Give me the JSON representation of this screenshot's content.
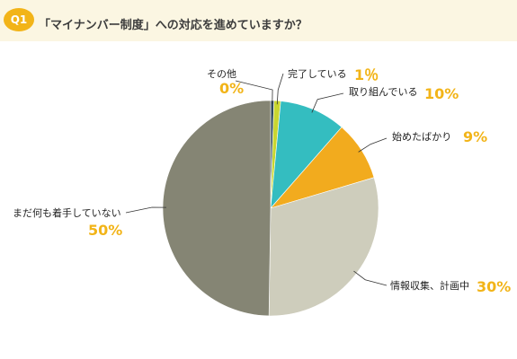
{
  "header": {
    "badge": "Q1",
    "question": "「マイナンバー制度」への対応を進めていますか？"
  },
  "colors": {
    "header_bg": "#fbf6e2",
    "badge": "#f2b418",
    "percent_text": "#f2b418"
  },
  "chart_data": {
    "type": "pie",
    "title": "",
    "start": "top",
    "direction": "clockwise",
    "slices": [
      {
        "label": "その他",
        "value": 0.5,
        "percent_label": "0%",
        "color": "#2f4a5f"
      },
      {
        "label": "完了している",
        "value": 1,
        "percent_label": "1％",
        "color": "#c8d630"
      },
      {
        "label": "取り組んでいる",
        "value": 10,
        "percent_label": "10%",
        "color": "#34bdc0"
      },
      {
        "label": "始めたばかり",
        "value": 9,
        "percent_label": "9%",
        "color": "#f2ab1e"
      },
      {
        "label": "情報収集、計画中",
        "value": 30,
        "percent_label": "30%",
        "color": "#cecdbc"
      },
      {
        "label": "まだ何も着手していない",
        "value": 50,
        "percent_label": "50%",
        "color": "#858574"
      }
    ]
  }
}
